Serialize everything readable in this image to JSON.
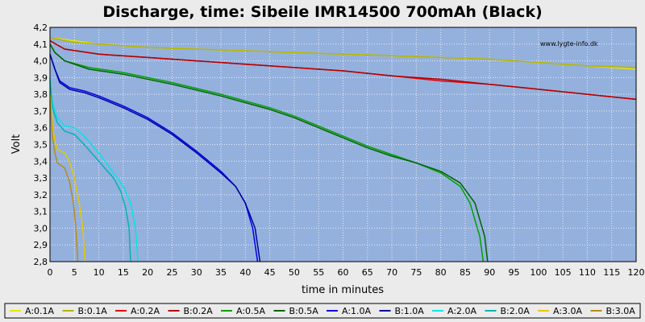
{
  "chart_data": {
    "type": "line",
    "title": "Discharge, time: Sibeile IMR14500 700mAh (Black)",
    "xlabel": "time in minutes",
    "ylabel": "Volt",
    "watermark": "www.lygte-info.dk",
    "xlim": [
      0,
      120
    ],
    "ylim": [
      2.8,
      4.2
    ],
    "xticks": [
      "0",
      "5",
      "10",
      "15",
      "20",
      "25",
      "30",
      "35",
      "40",
      "45",
      "50",
      "55",
      "60",
      "65",
      "70",
      "75",
      "80",
      "85",
      "90",
      "95",
      "100",
      "105",
      "110",
      "115",
      "120"
    ],
    "yticks": [
      "2,8",
      "2,9",
      "3,0",
      "3,1",
      "3,2",
      "3,3",
      "3,4",
      "3,5",
      "3,6",
      "3,7",
      "3,8",
      "3,9",
      "4,0",
      "4,1",
      "4,2"
    ],
    "grid": true,
    "legend_position": "bottom",
    "series": [
      {
        "name": "A:0.1A",
        "color": "#e6e600",
        "points": [
          [
            0,
            4.14
          ],
          [
            5,
            4.12
          ],
          [
            10,
            4.1
          ],
          [
            20,
            4.08
          ],
          [
            30,
            4.07
          ],
          [
            40,
            4.06
          ],
          [
            50,
            4.05
          ],
          [
            60,
            4.04
          ],
          [
            70,
            4.03
          ],
          [
            80,
            4.02
          ],
          [
            90,
            4.01
          ],
          [
            100,
            3.99
          ],
          [
            110,
            3.97
          ],
          [
            120,
            3.95
          ]
        ]
      },
      {
        "name": "B:0.1A",
        "color": "#b4b400",
        "points": [
          [
            0,
            4.14
          ],
          [
            5,
            4.11
          ],
          [
            10,
            4.1
          ],
          [
            20,
            4.08
          ],
          [
            30,
            4.07
          ],
          [
            40,
            4.06
          ],
          [
            50,
            4.05
          ],
          [
            60,
            4.04
          ],
          [
            70,
            4.03
          ],
          [
            80,
            4.02
          ],
          [
            90,
            4.01
          ],
          [
            100,
            3.99
          ],
          [
            110,
            3.97
          ],
          [
            120,
            3.96
          ]
        ]
      },
      {
        "name": "A:0.2A",
        "color": "#e60000",
        "points": [
          [
            0,
            4.12
          ],
          [
            3,
            4.07
          ],
          [
            10,
            4.04
          ],
          [
            20,
            4.02
          ],
          [
            30,
            4.0
          ],
          [
            40,
            3.98
          ],
          [
            50,
            3.96
          ],
          [
            60,
            3.94
          ],
          [
            70,
            3.91
          ],
          [
            80,
            3.88
          ],
          [
            90,
            3.86
          ],
          [
            100,
            3.83
          ],
          [
            110,
            3.8
          ],
          [
            120,
            3.77
          ]
        ]
      },
      {
        "name": "B:0.2A",
        "color": "#b40000",
        "points": [
          [
            0,
            4.12
          ],
          [
            3,
            4.07
          ],
          [
            10,
            4.04
          ],
          [
            20,
            4.02
          ],
          [
            30,
            4.0
          ],
          [
            40,
            3.98
          ],
          [
            50,
            3.96
          ],
          [
            60,
            3.94
          ],
          [
            70,
            3.91
          ],
          [
            80,
            3.89
          ],
          [
            90,
            3.86
          ],
          [
            100,
            3.83
          ],
          [
            110,
            3.8
          ],
          [
            120,
            3.77
          ]
        ]
      },
      {
        "name": "A:0.5A",
        "color": "#00a000",
        "points": [
          [
            0,
            4.1
          ],
          [
            1,
            4.05
          ],
          [
            3,
            4.0
          ],
          [
            8,
            3.96
          ],
          [
            15,
            3.93
          ],
          [
            25,
            3.87
          ],
          [
            35,
            3.8
          ],
          [
            45,
            3.72
          ],
          [
            50,
            3.67
          ],
          [
            55,
            3.61
          ],
          [
            60,
            3.55
          ],
          [
            65,
            3.49
          ],
          [
            70,
            3.44
          ],
          [
            75,
            3.39
          ],
          [
            80,
            3.33
          ],
          [
            84,
            3.25
          ],
          [
            86,
            3.15
          ],
          [
            88,
            2.95
          ],
          [
            88.7,
            2.8
          ]
        ]
      },
      {
        "name": "B:0.5A",
        "color": "#006400",
        "points": [
          [
            0,
            4.1
          ],
          [
            1,
            4.05
          ],
          [
            3,
            4.0
          ],
          [
            8,
            3.95
          ],
          [
            15,
            3.92
          ],
          [
            25,
            3.86
          ],
          [
            35,
            3.79
          ],
          [
            45,
            3.71
          ],
          [
            50,
            3.66
          ],
          [
            55,
            3.6
          ],
          [
            60,
            3.54
          ],
          [
            65,
            3.48
          ],
          [
            70,
            3.43
          ],
          [
            75,
            3.39
          ],
          [
            80,
            3.34
          ],
          [
            84,
            3.27
          ],
          [
            87,
            3.15
          ],
          [
            89,
            2.95
          ],
          [
            89.6,
            2.8
          ]
        ]
      },
      {
        "name": "A:1.0A",
        "color": "#0000e6",
        "points": [
          [
            0,
            4.04
          ],
          [
            1,
            3.95
          ],
          [
            2,
            3.88
          ],
          [
            4,
            3.84
          ],
          [
            7,
            3.82
          ],
          [
            10,
            3.79
          ],
          [
            15,
            3.73
          ],
          [
            20,
            3.66
          ],
          [
            25,
            3.57
          ],
          [
            30,
            3.46
          ],
          [
            35,
            3.34
          ],
          [
            38,
            3.25
          ],
          [
            40,
            3.15
          ],
          [
            41.5,
            3.0
          ],
          [
            42.5,
            2.8
          ]
        ]
      },
      {
        "name": "B:1.0A",
        "color": "#0000a0",
        "points": [
          [
            0,
            4.04
          ],
          [
            1,
            3.95
          ],
          [
            2,
            3.87
          ],
          [
            4,
            3.83
          ],
          [
            7,
            3.81
          ],
          [
            10,
            3.78
          ],
          [
            15,
            3.72
          ],
          [
            20,
            3.65
          ],
          [
            25,
            3.56
          ],
          [
            30,
            3.45
          ],
          [
            35,
            3.33
          ],
          [
            38,
            3.25
          ],
          [
            40,
            3.15
          ],
          [
            42,
            3.0
          ],
          [
            43,
            2.8
          ]
        ]
      },
      {
        "name": "A:2.0A",
        "color": "#00e6e6",
        "points": [
          [
            0,
            3.9
          ],
          [
            0.5,
            3.75
          ],
          [
            1.5,
            3.66
          ],
          [
            3,
            3.61
          ],
          [
            5,
            3.6
          ],
          [
            7,
            3.55
          ],
          [
            10,
            3.45
          ],
          [
            13,
            3.33
          ],
          [
            15,
            3.25
          ],
          [
            16.5,
            3.15
          ],
          [
            17.5,
            3.0
          ],
          [
            18,
            2.8
          ]
        ]
      },
      {
        "name": "B:2.0A",
        "color": "#00b4b4",
        "points": [
          [
            0,
            3.88
          ],
          [
            0.5,
            3.72
          ],
          [
            1.5,
            3.63
          ],
          [
            3,
            3.58
          ],
          [
            5,
            3.56
          ],
          [
            7,
            3.5
          ],
          [
            10,
            3.4
          ],
          [
            13,
            3.3
          ],
          [
            14.5,
            3.22
          ],
          [
            15.5,
            3.12
          ],
          [
            16.2,
            3.0
          ],
          [
            16.5,
            2.8
          ]
        ]
      },
      {
        "name": "A:3.0A",
        "color": "#e6c800",
        "points": [
          [
            0,
            3.8
          ],
          [
            0.5,
            3.62
          ],
          [
            1,
            3.52
          ],
          [
            1.5,
            3.47
          ],
          [
            3,
            3.45
          ],
          [
            4,
            3.4
          ],
          [
            5,
            3.3
          ],
          [
            6,
            3.15
          ],
          [
            6.7,
            3.0
          ],
          [
            7.2,
            2.8
          ]
        ]
      },
      {
        "name": "B:3.0A",
        "color": "#b48c1e",
        "points": [
          [
            0,
            3.76
          ],
          [
            0.5,
            3.55
          ],
          [
            1,
            3.45
          ],
          [
            1.5,
            3.39
          ],
          [
            3,
            3.36
          ],
          [
            4,
            3.28
          ],
          [
            4.8,
            3.15
          ],
          [
            5.3,
            3.0
          ],
          [
            5.7,
            2.8
          ]
        ]
      }
    ]
  }
}
